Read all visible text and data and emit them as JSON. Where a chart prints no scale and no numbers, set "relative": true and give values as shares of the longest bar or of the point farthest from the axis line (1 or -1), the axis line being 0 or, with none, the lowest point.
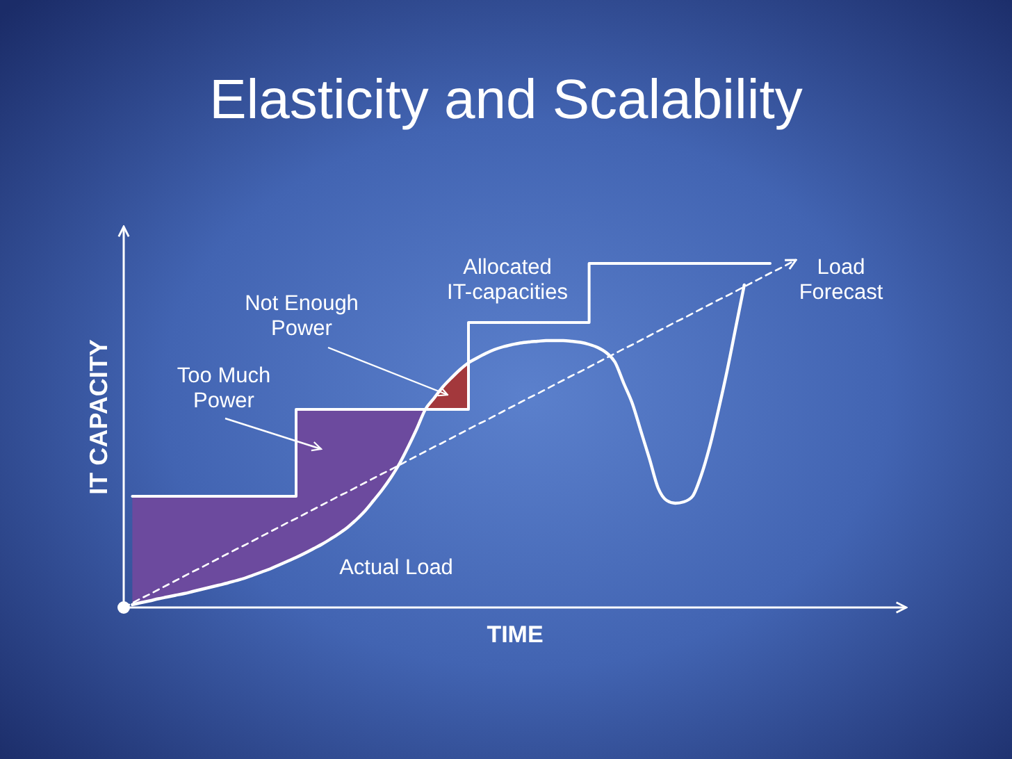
{
  "chart_data": {
    "type": "line",
    "title": "Elasticity and Scalability",
    "xlabel": "TIME",
    "ylabel": "IT CAPACITY",
    "relative": true,
    "categories": [
      null,
      null,
      null,
      null,
      null,
      null,
      null,
      null,
      null,
      null,
      null,
      null,
      null,
      null,
      null,
      null,
      null,
      null,
      null,
      null,
      null,
      null,
      null,
      null,
      null,
      null,
      null,
      null,
      null,
      null,
      null,
      null,
      null,
      null,
      null,
      null,
      null,
      null,
      null,
      null,
      null,
      null,
      null,
      null,
      null,
      null,
      null,
      null,
      null,
      null,
      null,
      null,
      null,
      null,
      null,
      null,
      null,
      null,
      null,
      null,
      null,
      null,
      null,
      null,
      null,
      null,
      null,
      null,
      null,
      null,
      null,
      null,
      null,
      null,
      null,
      null,
      null,
      null,
      null
    ],
    "series": [
      {
        "name": "Too Much Power",
        "type": "area",
        "color": "#6c4a9e",
        "values": [
          null,
          0.32,
          0.32,
          0.32,
          0.32,
          0.32,
          0.32,
          0.32,
          0.32,
          0.32,
          0.32,
          0.32,
          0.32,
          0.32,
          0.32,
          0.32,
          0.32,
          0.32,
          0.32,
          0.32,
          0.57,
          0.57,
          0.57,
          0.57,
          0.57,
          0.57,
          0.57,
          0.57,
          0.57,
          0.57,
          0.57,
          0.57,
          0.57,
          0.57,
          0.57,
          0.57,
          null,
          null,
          null,
          null,
          null,
          null,
          null,
          null,
          null,
          null,
          null,
          null,
          null,
          null,
          null,
          null,
          null,
          null,
          null,
          null,
          null,
          null,
          null,
          null,
          null,
          null,
          null,
          null,
          null,
          null,
          null,
          null,
          null,
          null,
          null,
          null,
          null,
          null,
          null,
          null,
          null,
          null,
          null
        ]
      },
      {
        "name": "Not Enough Power",
        "type": "area",
        "color": "#a3383c",
        "values": [
          null,
          null,
          null,
          null,
          null,
          null,
          null,
          null,
          null,
          null,
          null,
          null,
          null,
          null,
          null,
          null,
          null,
          null,
          null,
          null,
          null,
          null,
          null,
          null,
          null,
          null,
          null,
          null,
          null,
          null,
          null,
          null,
          null,
          null,
          null,
          0.57,
          0.602,
          0.634,
          0.66,
          0.684,
          0.704,
          null,
          null,
          null,
          null,
          null,
          null,
          null,
          null,
          null,
          null,
          null,
          null,
          null,
          null,
          null,
          null,
          null,
          null,
          null,
          null,
          null,
          null,
          null,
          null,
          null,
          null,
          null,
          null,
          null,
          null,
          null,
          null,
          null,
          null,
          null,
          null,
          null,
          null
        ]
      },
      {
        "name": "Load Forecast",
        "type": "line",
        "line_style": "dashed",
        "color": "#ffffff",
        "values": [
          0,
          0.013,
          0.026,
          0.038,
          0.051,
          0.064,
          0.077,
          0.09,
          0.103,
          0.115,
          0.128,
          0.141,
          0.154,
          0.167,
          0.179,
          0.192,
          0.205,
          0.218,
          0.231,
          0.244,
          0.256,
          0.269,
          0.282,
          0.295,
          0.308,
          0.321,
          0.333,
          0.346,
          0.359,
          0.372,
          0.385,
          0.397,
          0.41,
          0.423,
          0.436,
          0.449,
          0.462,
          0.474,
          0.487,
          0.5,
          0.513,
          0.526,
          0.538,
          0.551,
          0.564,
          0.577,
          0.59,
          0.603,
          0.615,
          0.628,
          0.641,
          0.654,
          0.667,
          0.679,
          0.692,
          0.705,
          0.718,
          0.731,
          0.744,
          0.756,
          0.769,
          0.782,
          0.795,
          0.808,
          0.821,
          0.833,
          0.846,
          0.859,
          0.872,
          0.885,
          0.897,
          0.91,
          0.923,
          0.936,
          0.949,
          0.962,
          0.974,
          0.987,
          1
        ]
      },
      {
        "name": "Allocated IT-capacities",
        "type": "step",
        "color": "#ffffff",
        "values": [
          null,
          0.32,
          0.32,
          0.32,
          0.32,
          0.32,
          0.32,
          0.32,
          0.32,
          0.32,
          0.32,
          0.32,
          0.32,
          0.32,
          0.32,
          0.32,
          0.32,
          0.32,
          0.32,
          0.32,
          0.57,
          0.57,
          0.57,
          0.57,
          0.57,
          0.57,
          0.57,
          0.57,
          0.57,
          0.57,
          0.57,
          0.57,
          0.57,
          0.57,
          0.57,
          0.57,
          0.57,
          0.57,
          0.57,
          0.57,
          0.82,
          0.82,
          0.82,
          0.82,
          0.82,
          0.82,
          0.82,
          0.82,
          0.82,
          0.82,
          0.82,
          0.82,
          0.82,
          0.82,
          0.99,
          0.99,
          0.99,
          0.99,
          0.99,
          0.99,
          0.99,
          0.99,
          0.99,
          0.99,
          0.99,
          0.99,
          0.99,
          0.99,
          0.99,
          0.99,
          0.99,
          0.99,
          0.99,
          0.99,
          0.99,
          0.99,
          null,
          null,
          null
        ]
      },
      {
        "name": "Actual Load",
        "type": "line",
        "color": "#ffffff",
        "values": [
          null,
          0.008,
          0.014,
          0.019,
          0.025,
          0.03,
          0.035,
          0.04,
          0.046,
          0.052,
          0.058,
          0.064,
          0.07,
          0.077,
          0.084,
          0.093,
          0.102,
          0.111,
          0.122,
          0.133,
          0.144,
          0.156,
          0.169,
          0.182,
          0.197,
          0.213,
          0.231,
          0.253,
          0.278,
          0.308,
          0.339,
          0.374,
          0.414,
          0.462,
          0.514,
          0.57,
          0.602,
          0.634,
          0.66,
          0.684,
          0.704,
          0.718,
          0.731,
          0.742,
          0.75,
          0.756,
          0.761,
          0.764,
          0.766,
          0.768,
          0.768,
          0.768,
          0.766,
          0.763,
          0.757,
          0.748,
          0.733,
          0.706,
          0.646,
          0.588,
          0.508,
          0.428,
          0.344,
          0.308,
          0.3,
          0.304,
          0.32,
          0.38,
          0.464,
          0.568,
          0.68,
          0.804,
          0.928,
          null,
          null,
          null,
          null,
          null,
          null
        ]
      }
    ]
  }
}
